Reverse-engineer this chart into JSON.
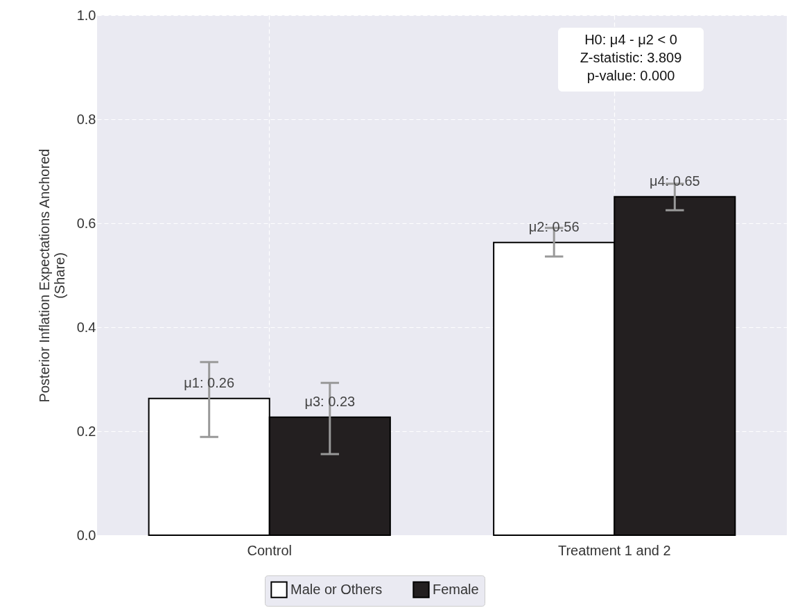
{
  "chart_data": {
    "type": "bar",
    "ylabel": "Posterior Inflation Expectations Anchored\n(Share)",
    "categories": [
      "Control",
      "Treatment 1 and 2"
    ],
    "series": [
      {
        "name": "Male or Others",
        "color": "#ffffff",
        "values": [
          0.263,
          0.563
        ],
        "errors": [
          [
            0.189,
            0.333
          ],
          [
            0.536,
            0.591
          ]
        ],
        "value_labels": [
          "μ1: 0.26",
          "μ2: 0.56"
        ]
      },
      {
        "name": "Female",
        "color": "#231f20",
        "values": [
          0.227,
          0.651
        ],
        "errors": [
          [
            0.156,
            0.293
          ],
          [
            0.625,
            0.676
          ]
        ],
        "value_labels": [
          "μ3: 0.23",
          "μ4: 0.65"
        ]
      }
    ],
    "ylim": [
      0,
      1
    ],
    "yticks": [
      {
        "value": 0,
        "label": "0.0"
      },
      {
        "value": 0.2,
        "label": "0.2"
      },
      {
        "value": 0.4,
        "label": "0.4"
      },
      {
        "value": 0.6,
        "label": "0.6"
      },
      {
        "value": 0.8,
        "label": "0.8"
      },
      {
        "value": 1,
        "label": "1.0"
      }
    ],
    "grid": true,
    "legend": "bottom",
    "annotations": [
      "H0: μ4 - μ2 < 0\nZ-statistic: 3.809\np-value: 0.000"
    ]
  }
}
